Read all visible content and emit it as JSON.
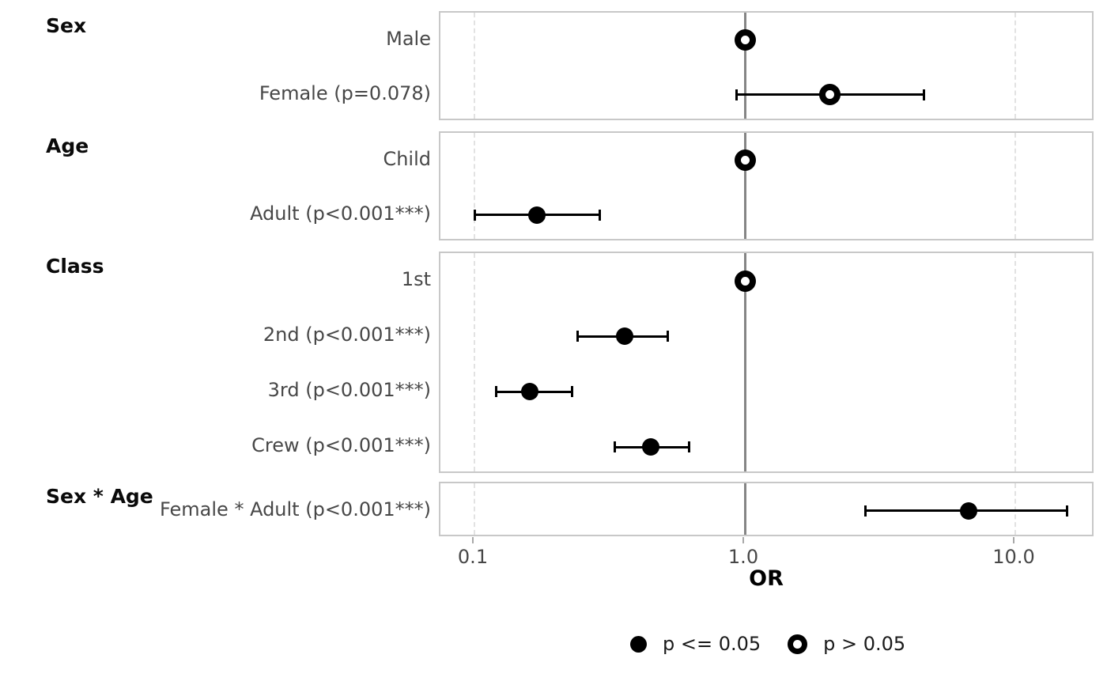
{
  "chart_data": {
    "type": "forest_plot",
    "xlabel": "OR",
    "x_scale": "log10",
    "x_ticks": [
      0.1,
      1.0,
      10.0
    ],
    "x_tick_labels": [
      "0.1",
      "1.0",
      "10.0"
    ],
    "x_range": [
      0.075,
      19.7
    ],
    "reference_line": 1.0,
    "gridlines": [
      0.1,
      10.0
    ],
    "groups": [
      {
        "label": "Sex",
        "rows": [
          {
            "label": "Male",
            "or": 1.0,
            "ci_low": null,
            "ci_high": null,
            "significant": false,
            "reference": true
          },
          {
            "label": "Female (p=0.078)",
            "or": 2.06,
            "ci_low": 0.93,
            "ci_high": 4.6,
            "significant": false,
            "reference": false
          }
        ]
      },
      {
        "label": "Age",
        "rows": [
          {
            "label": "Child",
            "or": 1.0,
            "ci_low": null,
            "ci_high": null,
            "significant": false,
            "reference": true
          },
          {
            "label": "Adult (p<0.001***)",
            "or": 0.17,
            "ci_low": 0.1,
            "ci_high": 0.29,
            "significant": true,
            "reference": false
          }
        ]
      },
      {
        "label": "Class",
        "rows": [
          {
            "label": "1st",
            "or": 1.0,
            "ci_low": null,
            "ci_high": null,
            "significant": false,
            "reference": true
          },
          {
            "label": "2nd (p<0.001***)",
            "or": 0.36,
            "ci_low": 0.24,
            "ci_high": 0.52,
            "significant": true,
            "reference": false
          },
          {
            "label": "3rd (p<0.001***)",
            "or": 0.16,
            "ci_low": 0.12,
            "ci_high": 0.23,
            "significant": true,
            "reference": false
          },
          {
            "label": "Crew (p<0.001***)",
            "or": 0.45,
            "ci_low": 0.33,
            "ci_high": 0.62,
            "significant": true,
            "reference": false
          }
        ]
      },
      {
        "label": "Sex * Age",
        "rows": [
          {
            "label": "Female * Adult (p<0.001***)",
            "or": 6.7,
            "ci_low": 2.8,
            "ci_high": 15.5,
            "significant": true,
            "reference": false
          }
        ]
      }
    ],
    "legend": {
      "items": [
        {
          "label": "p <= 0.05",
          "marker": "filled-circle"
        },
        {
          "label": "p > 0.05",
          "marker": "open-circle"
        }
      ]
    },
    "colors": {
      "marker": "#000000",
      "reference_line": "#858585",
      "panel_border": "#c8c8c8",
      "gridline": "#e2e2e2",
      "tick": "#a8a8a8",
      "row_label": "#474747",
      "group_label": "#0a0a0a",
      "tick_label": "#474747"
    }
  }
}
